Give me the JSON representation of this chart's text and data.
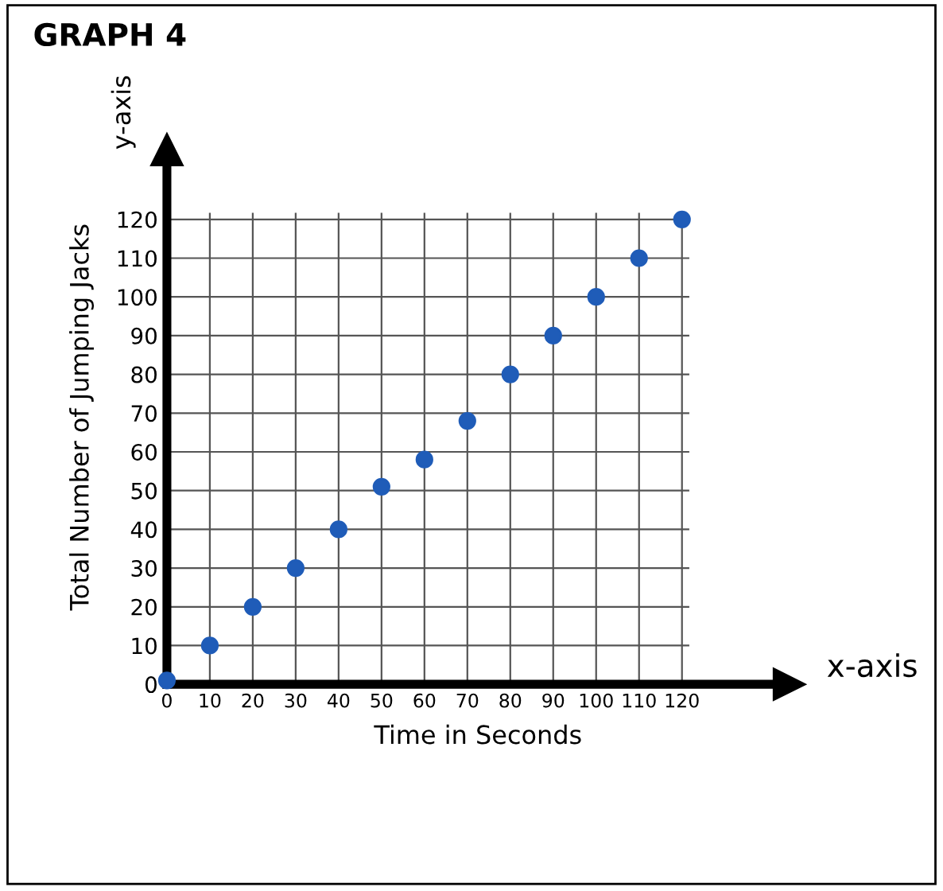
{
  "chart_data": {
    "type": "scatter",
    "title": "GRAPH 4",
    "xlabel": "Time in Seconds",
    "ylabel": "Total Number of Jumping Jacks",
    "annotations": [
      "x-axis",
      "y-axis"
    ],
    "x": [
      0,
      10,
      20,
      30,
      40,
      50,
      60,
      70,
      80,
      90,
      100,
      110,
      120
    ],
    "series": [
      {
        "color": "#1f5cb8",
        "values": [
          1,
          10,
          20,
          30,
          40,
          51,
          58,
          68,
          80,
          90,
          100,
          110,
          120
        ]
      }
    ],
    "xlim": [
      0,
      145
    ],
    "ylim": [
      0,
      138
    ],
    "xticks": [
      0,
      10,
      20,
      30,
      40,
      50,
      60,
      70,
      80,
      90,
      100,
      110,
      120
    ],
    "yticks": [
      0,
      10,
      20,
      30,
      40,
      50,
      60,
      70,
      80,
      90,
      100,
      110,
      120
    ],
    "grid": true,
    "marker": "circle"
  }
}
